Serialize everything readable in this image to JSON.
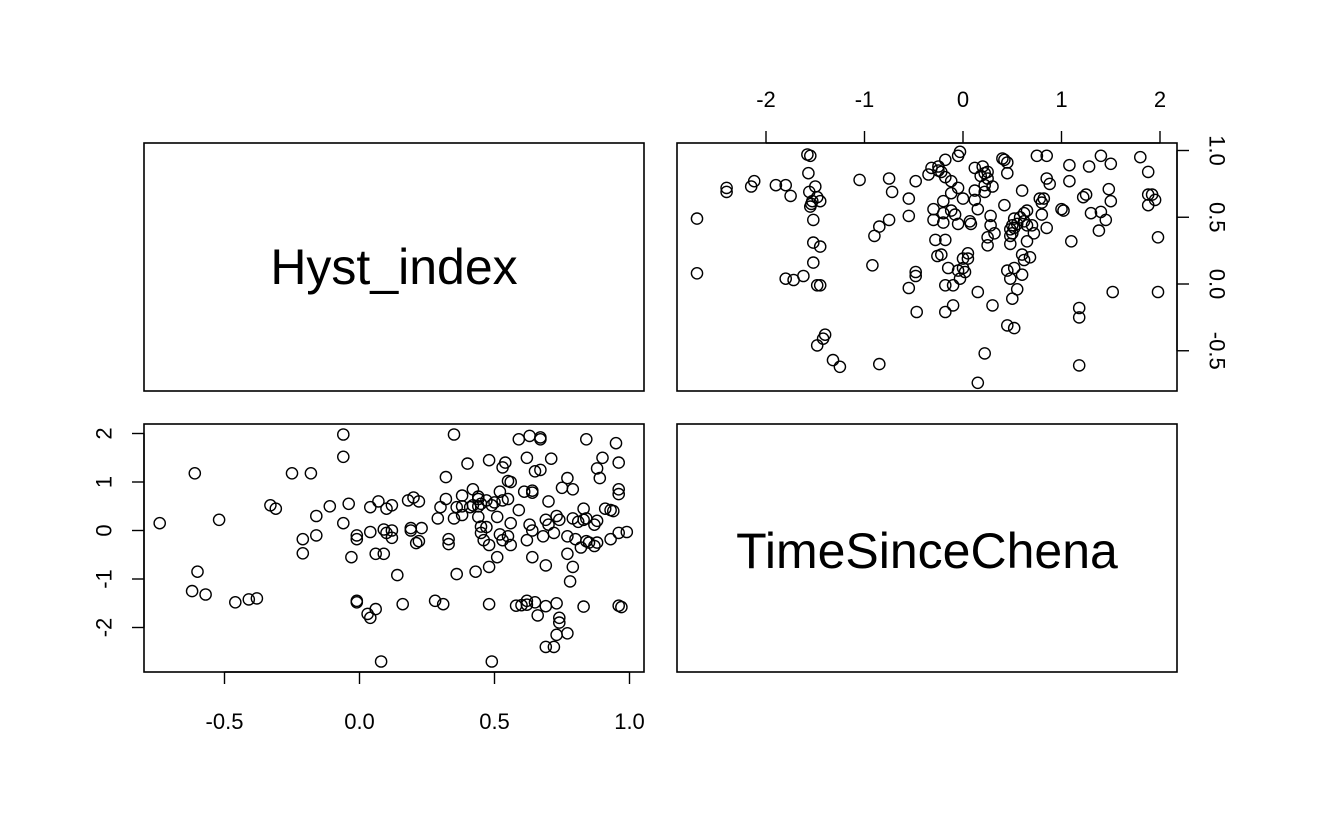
{
  "chart_data": {
    "type": "scatter",
    "variables": [
      "Hyst_index",
      "TimeSinceChena"
    ],
    "hyst_axis": {
      "range": [
        -0.8,
        1.0
      ],
      "ticks": [
        -0.5,
        0.0,
        0.5,
        1.0
      ],
      "tick_labels": [
        "-0.5",
        "0.0",
        "0.5",
        "1.0"
      ]
    },
    "time_axis": {
      "range": [
        -2.8,
        2.2
      ],
      "ticks": [
        -2,
        -1,
        0,
        1,
        2
      ],
      "tick_labels": [
        "-2",
        "-1",
        "0",
        "1",
        "2"
      ]
    },
    "points": [
      {
        "time": -2.7,
        "hyst": 0.49
      },
      {
        "time": -2.7,
        "hyst": 0.08
      },
      {
        "time": -2.4,
        "hyst": 0.69
      },
      {
        "time": -2.4,
        "hyst": 0.72
      },
      {
        "time": -2.15,
        "hyst": 0.73
      },
      {
        "time": -2.12,
        "hyst": 0.77
      },
      {
        "time": -1.9,
        "hyst": 0.74
      },
      {
        "time": -1.8,
        "hyst": 0.74
      },
      {
        "time": -1.75,
        "hyst": 0.66
      },
      {
        "time": -1.8,
        "hyst": 0.04
      },
      {
        "time": -1.72,
        "hyst": 0.03
      },
      {
        "time": -1.62,
        "hyst": 0.06
      },
      {
        "time": -1.58,
        "hyst": 0.97
      },
      {
        "time": -1.55,
        "hyst": 0.96
      },
      {
        "time": -1.57,
        "hyst": 0.83
      },
      {
        "time": -1.56,
        "hyst": 0.69
      },
      {
        "time": -1.54,
        "hyst": 0.6
      },
      {
        "time": -1.53,
        "hyst": 0.62
      },
      {
        "time": -1.55,
        "hyst": 0.58
      },
      {
        "time": -1.52,
        "hyst": 0.48
      },
      {
        "time": -1.5,
        "hyst": 0.73
      },
      {
        "time": -1.48,
        "hyst": 0.65
      },
      {
        "time": -1.45,
        "hyst": 0.62
      },
      {
        "time": -1.52,
        "hyst": 0.31
      },
      {
        "time": -1.45,
        "hyst": 0.28
      },
      {
        "time": -1.52,
        "hyst": 0.16
      },
      {
        "time": -1.48,
        "hyst": -0.01
      },
      {
        "time": -1.45,
        "hyst": -0.01
      },
      {
        "time": -1.48,
        "hyst": -0.46
      },
      {
        "time": -1.42,
        "hyst": -0.41
      },
      {
        "time": -1.4,
        "hyst": -0.38
      },
      {
        "time": -1.32,
        "hyst": -0.57
      },
      {
        "time": -1.25,
        "hyst": -0.62
      },
      {
        "time": -1.05,
        "hyst": 0.78
      },
      {
        "time": -0.92,
        "hyst": 0.14
      },
      {
        "time": -0.9,
        "hyst": 0.36
      },
      {
        "time": -0.85,
        "hyst": 0.43
      },
      {
        "time": -0.85,
        "hyst": -0.6
      },
      {
        "time": -0.75,
        "hyst": 0.79
      },
      {
        "time": -0.72,
        "hyst": 0.69
      },
      {
        "time": -0.75,
        "hyst": 0.48
      },
      {
        "time": -0.55,
        "hyst": 0.64
      },
      {
        "time": -0.55,
        "hyst": 0.51
      },
      {
        "time": -0.55,
        "hyst": -0.03
      },
      {
        "time": -0.48,
        "hyst": 0.06
      },
      {
        "time": -0.48,
        "hyst": 0.09
      },
      {
        "time": -0.48,
        "hyst": 0.77
      },
      {
        "time": -0.47,
        "hyst": -0.21
      },
      {
        "time": -0.35,
        "hyst": 0.82
      },
      {
        "time": -0.32,
        "hyst": 0.87
      },
      {
        "time": -0.3,
        "hyst": 0.56
      },
      {
        "time": -0.3,
        "hyst": 0.48
      },
      {
        "time": -0.28,
        "hyst": 0.33
      },
      {
        "time": -0.26,
        "hyst": 0.21
      },
      {
        "time": -0.25,
        "hyst": 0.85
      },
      {
        "time": -0.25,
        "hyst": 0.88
      },
      {
        "time": -0.22,
        "hyst": 0.84
      },
      {
        "time": -0.22,
        "hyst": 0.22
      },
      {
        "time": -0.2,
        "hyst": 0.62
      },
      {
        "time": -0.2,
        "hyst": 0.53
      },
      {
        "time": -0.2,
        "hyst": 0.46
      },
      {
        "time": -0.18,
        "hyst": 0.93
      },
      {
        "time": -0.18,
        "hyst": 0.8
      },
      {
        "time": -0.18,
        "hyst": 0.33
      },
      {
        "time": -0.18,
        "hyst": -0.01
      },
      {
        "time": -0.18,
        "hyst": -0.21
      },
      {
        "time": -0.15,
        "hyst": 0.12
      },
      {
        "time": -0.12,
        "hyst": 0.77
      },
      {
        "time": -0.12,
        "hyst": 0.68
      },
      {
        "time": -0.12,
        "hyst": 0.55
      },
      {
        "time": -0.1,
        "hyst": -0.01
      },
      {
        "time": -0.1,
        "hyst": -0.16
      },
      {
        "time": -0.08,
        "hyst": 0.52
      },
      {
        "time": -0.05,
        "hyst": 0.96
      },
      {
        "time": -0.03,
        "hyst": 0.99
      },
      {
        "time": -0.05,
        "hyst": 0.72
      },
      {
        "time": -0.05,
        "hyst": 0.45
      },
      {
        "time": -0.05,
        "hyst": 0.1
      },
      {
        "time": -0.03,
        "hyst": 0.04
      },
      {
        "time": 0.0,
        "hyst": 0.64
      },
      {
        "time": 0.0,
        "hyst": 0.19
      },
      {
        "time": 0.0,
        "hyst": 0.12
      },
      {
        "time": 0.02,
        "hyst": 0.09
      },
      {
        "time": 0.05,
        "hyst": 0.23
      },
      {
        "time": 0.05,
        "hyst": 0.19
      },
      {
        "time": 0.07,
        "hyst": 0.47
      },
      {
        "time": 0.08,
        "hyst": 0.45
      },
      {
        "time": 0.12,
        "hyst": 0.87
      },
      {
        "time": 0.12,
        "hyst": 0.7
      },
      {
        "time": 0.12,
        "hyst": 0.63
      },
      {
        "time": 0.15,
        "hyst": 0.56
      },
      {
        "time": 0.15,
        "hyst": -0.06
      },
      {
        "time": 0.15,
        "hyst": -0.74
      },
      {
        "time": 0.18,
        "hyst": 0.81
      },
      {
        "time": 0.2,
        "hyst": 0.88
      },
      {
        "time": 0.22,
        "hyst": 0.83
      },
      {
        "time": 0.22,
        "hyst": 0.74
      },
      {
        "time": 0.22,
        "hyst": 0.69
      },
      {
        "time": 0.25,
        "hyst": 0.84
      },
      {
        "time": 0.25,
        "hyst": 0.79
      },
      {
        "time": 0.25,
        "hyst": 0.35
      },
      {
        "time": 0.25,
        "hyst": 0.29
      },
      {
        "time": 0.22,
        "hyst": -0.52
      },
      {
        "time": 0.28,
        "hyst": 0.51
      },
      {
        "time": 0.28,
        "hyst": 0.44
      },
      {
        "time": 0.3,
        "hyst": 0.73
      },
      {
        "time": 0.3,
        "hyst": -0.16
      },
      {
        "time": 0.32,
        "hyst": 0.38
      },
      {
        "time": 0.4,
        "hyst": 0.94
      },
      {
        "time": 0.42,
        "hyst": 0.93
      },
      {
        "time": 0.42,
        "hyst": 0.59
      },
      {
        "time": 0.45,
        "hyst": 0.91
      },
      {
        "time": 0.45,
        "hyst": 0.83
      },
      {
        "time": 0.45,
        "hyst": 0.1
      },
      {
        "time": 0.45,
        "hyst": -0.31
      },
      {
        "time": 0.48,
        "hyst": 0.41
      },
      {
        "time": 0.48,
        "hyst": 0.36
      },
      {
        "time": 0.48,
        "hyst": 0.3
      },
      {
        "time": 0.48,
        "hyst": 0.04
      },
      {
        "time": 0.5,
        "hyst": 0.44
      },
      {
        "time": 0.5,
        "hyst": 0.38
      },
      {
        "time": 0.5,
        "hyst": -0.11
      },
      {
        "time": 0.52,
        "hyst": 0.49
      },
      {
        "time": 0.52,
        "hyst": 0.42
      },
      {
        "time": 0.52,
        "hyst": 0.12
      },
      {
        "time": 0.52,
        "hyst": -0.33
      },
      {
        "time": 0.55,
        "hyst": 0.45
      },
      {
        "time": 0.55,
        "hyst": -0.04
      },
      {
        "time": 0.58,
        "hyst": 0.5
      },
      {
        "time": 0.6,
        "hyst": 0.7
      },
      {
        "time": 0.6,
        "hyst": 0.22
      },
      {
        "time": 0.6,
        "hyst": 0.07
      },
      {
        "time": 0.62,
        "hyst": 0.53
      },
      {
        "time": 0.62,
        "hyst": 0.47
      },
      {
        "time": 0.62,
        "hyst": 0.18
      },
      {
        "time": 0.65,
        "hyst": 0.55
      },
      {
        "time": 0.65,
        "hyst": 0.32
      },
      {
        "time": 0.65,
        "hyst": 0.44
      },
      {
        "time": 0.68,
        "hyst": 0.2
      },
      {
        "time": 0.7,
        "hyst": 0.44
      },
      {
        "time": 0.72,
        "hyst": 0.38
      },
      {
        "time": 0.75,
        "hyst": 0.96
      },
      {
        "time": 0.78,
        "hyst": 0.64
      },
      {
        "time": 0.8,
        "hyst": 0.52
      },
      {
        "time": 0.8,
        "hyst": 0.61
      },
      {
        "time": 0.82,
        "hyst": 0.64
      },
      {
        "time": 0.85,
        "hyst": 0.96
      },
      {
        "time": 0.85,
        "hyst": 0.79
      },
      {
        "time": 0.85,
        "hyst": 0.42
      },
      {
        "time": 0.88,
        "hyst": 0.75
      },
      {
        "time": 1.0,
        "hyst": 0.56
      },
      {
        "time": 1.02,
        "hyst": 0.55
      },
      {
        "time": 1.08,
        "hyst": 0.89
      },
      {
        "time": 1.08,
        "hyst": 0.77
      },
      {
        "time": 1.1,
        "hyst": 0.32
      },
      {
        "time": 1.18,
        "hyst": -0.18
      },
      {
        "time": 1.18,
        "hyst": -0.25
      },
      {
        "time": 1.18,
        "hyst": -0.61
      },
      {
        "time": 1.22,
        "hyst": 0.65
      },
      {
        "time": 1.25,
        "hyst": 0.67
      },
      {
        "time": 1.28,
        "hyst": 0.88
      },
      {
        "time": 1.3,
        "hyst": 0.53
      },
      {
        "time": 1.38,
        "hyst": 0.4
      },
      {
        "time": 1.4,
        "hyst": 0.96
      },
      {
        "time": 1.4,
        "hyst": 0.54
      },
      {
        "time": 1.45,
        "hyst": 0.48
      },
      {
        "time": 1.48,
        "hyst": 0.71
      },
      {
        "time": 1.5,
        "hyst": 0.9
      },
      {
        "time": 1.5,
        "hyst": 0.62
      },
      {
        "time": 1.52,
        "hyst": -0.06
      },
      {
        "time": 1.8,
        "hyst": 0.95
      },
      {
        "time": 1.88,
        "hyst": 0.84
      },
      {
        "time": 1.88,
        "hyst": 0.67
      },
      {
        "time": 1.88,
        "hyst": 0.59
      },
      {
        "time": 1.92,
        "hyst": 0.67
      },
      {
        "time": 1.95,
        "hyst": 0.63
      },
      {
        "time": 1.98,
        "hyst": 0.35
      },
      {
        "time": 1.98,
        "hyst": -0.06
      }
    ]
  },
  "panels": {
    "diag1": {
      "label": "Hyst_index"
    },
    "diag2": {
      "label": "TimeSinceChena"
    }
  }
}
